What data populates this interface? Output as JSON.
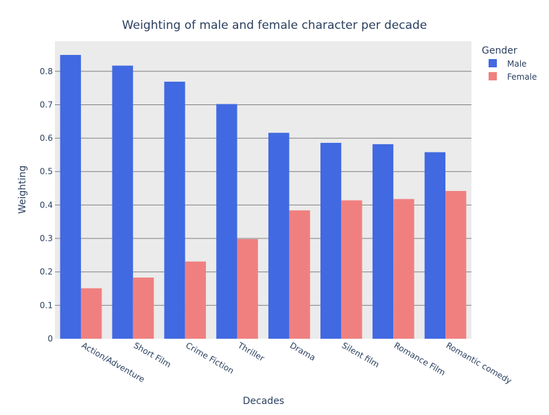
{
  "chart_data": {
    "type": "bar",
    "title": "Weighting of male and female character per decade",
    "xlabel": "Decades",
    "ylabel": "Weighting",
    "ylim": [
      0,
      0.89
    ],
    "yticks": [
      0,
      0.1,
      0.2,
      0.3,
      0.4,
      0.5,
      0.6,
      0.7,
      0.8
    ],
    "ytick_labels": [
      "0",
      "0.1",
      "0.2",
      "0.3",
      "0.4",
      "0.5",
      "0.6",
      "0.7",
      "0.8"
    ],
    "grid": true,
    "legend_title": "Gender",
    "legend_position": "top-right",
    "categories": [
      "Action/Adventure",
      "Short Film",
      "Crime Fiction",
      "Thriller",
      "Drama",
      "Silent film",
      "Romance Film",
      "Romantic comedy"
    ],
    "series": [
      {
        "name": "Male",
        "color": "#4169e1",
        "values": [
          0.849,
          0.817,
          0.769,
          0.702,
          0.616,
          0.586,
          0.582,
          0.558
        ]
      },
      {
        "name": "Female",
        "color": "#f08080",
        "values": [
          0.151,
          0.183,
          0.231,
          0.298,
          0.384,
          0.414,
          0.418,
          0.442
        ]
      }
    ],
    "plot_background": "#ebebeb",
    "grid_color": "#808080"
  }
}
